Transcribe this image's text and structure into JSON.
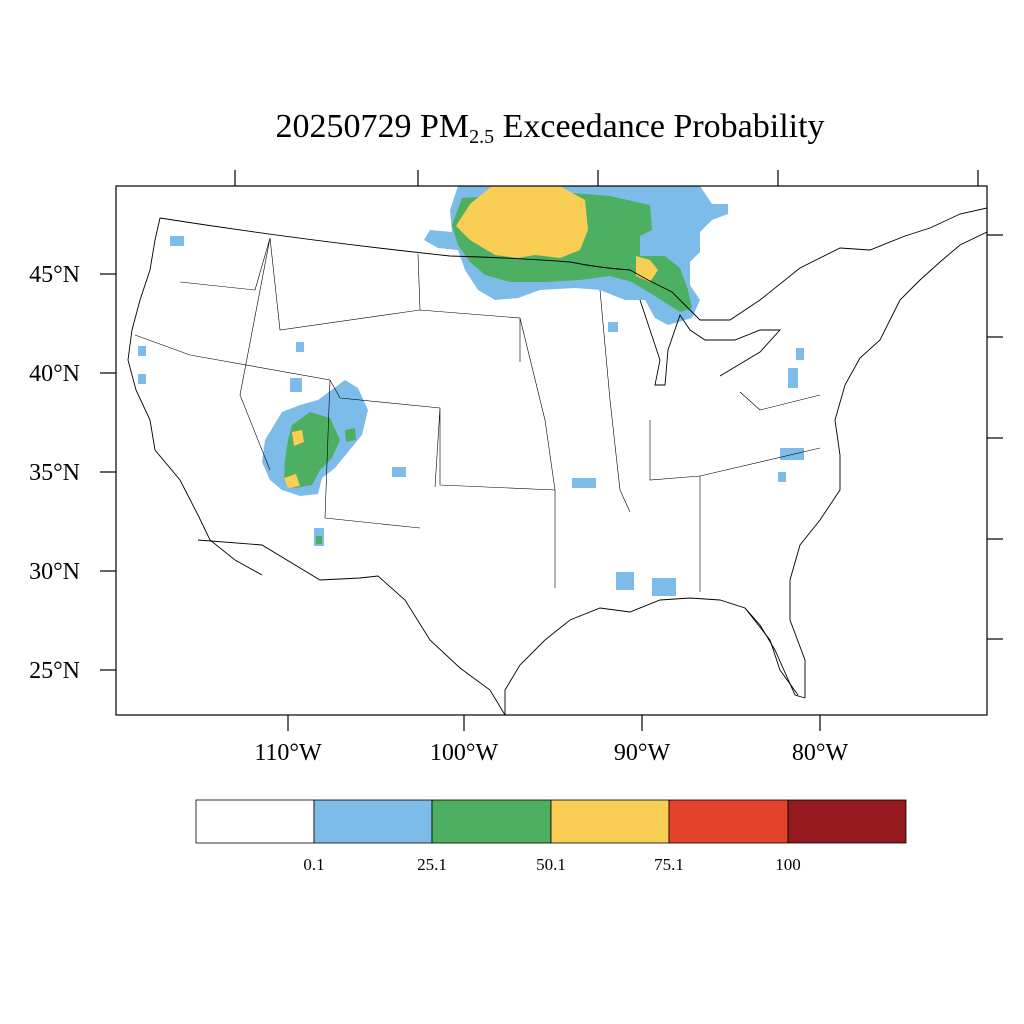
{
  "title": {
    "date": "20250729",
    "pm": "PM",
    "sub": "2.5",
    "rest": " Exceedance Probability"
  },
  "map": {
    "lat_labels": [
      "45°N",
      "40°N",
      "35°N",
      "30°N",
      "25°N"
    ],
    "lon_labels": [
      "110°W",
      "100°W",
      "90°W",
      "80°W"
    ]
  },
  "colorbar": {
    "colors": [
      "#ffffff",
      "#7dbce8",
      "#4caf62",
      "#f9ce54",
      "#e4422a",
      "#941a1f"
    ],
    "labels": [
      "0.1",
      "25.1",
      "50.1",
      "75.1",
      "100"
    ]
  },
  "colors": {
    "blue": "#7dbce8",
    "green": "#4caf62",
    "yellow": "#f9ce54"
  }
}
